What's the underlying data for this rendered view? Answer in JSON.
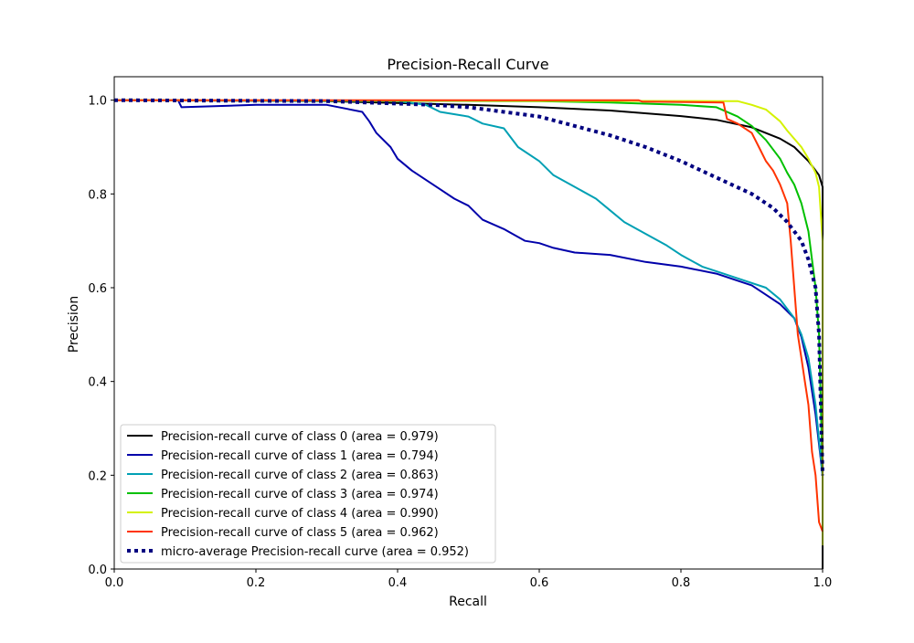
{
  "chart_data": {
    "type": "line",
    "title": "Precision-Recall Curve",
    "xlabel": "Recall",
    "ylabel": "Precision",
    "xlim": [
      0.0,
      1.0
    ],
    "ylim": [
      0.0,
      1.05
    ],
    "x_ticks": [
      "0.0",
      "0.2",
      "0.4",
      "0.6",
      "0.8",
      "1.0"
    ],
    "y_ticks": [
      "0.0",
      "0.2",
      "0.4",
      "0.6",
      "0.8",
      "1.0"
    ],
    "grid": false,
    "legend_position": "lower-left",
    "series": [
      {
        "name": "Precision-recall curve of class 0 (area = 0.979)",
        "color": "#000000",
        "style": "solid",
        "points": [
          [
            0.0,
            1.0
          ],
          [
            0.3,
            0.998
          ],
          [
            0.5,
            0.99
          ],
          [
            0.6,
            0.985
          ],
          [
            0.7,
            0.978
          ],
          [
            0.8,
            0.966
          ],
          [
            0.85,
            0.958
          ],
          [
            0.9,
            0.942
          ],
          [
            0.94,
            0.918
          ],
          [
            0.96,
            0.9
          ],
          [
            0.98,
            0.87
          ],
          [
            0.99,
            0.85
          ],
          [
            0.995,
            0.84
          ],
          [
            1.0,
            0.815
          ],
          [
            1.0,
            0.0
          ]
        ]
      },
      {
        "name": "Precision-recall curve of class 1 (area = 0.794)",
        "color": "#0000aa",
        "style": "solid",
        "points": [
          [
            0.0,
            1.0
          ],
          [
            0.09,
            1.0
          ],
          [
            0.095,
            0.985
          ],
          [
            0.2,
            0.99
          ],
          [
            0.3,
            0.99
          ],
          [
            0.35,
            0.975
          ],
          [
            0.36,
            0.955
          ],
          [
            0.37,
            0.93
          ],
          [
            0.39,
            0.9
          ],
          [
            0.4,
            0.875
          ],
          [
            0.42,
            0.85
          ],
          [
            0.44,
            0.83
          ],
          [
            0.46,
            0.81
          ],
          [
            0.48,
            0.79
          ],
          [
            0.5,
            0.775
          ],
          [
            0.52,
            0.745
          ],
          [
            0.55,
            0.725
          ],
          [
            0.58,
            0.7
          ],
          [
            0.6,
            0.695
          ],
          [
            0.62,
            0.685
          ],
          [
            0.65,
            0.675
          ],
          [
            0.7,
            0.67
          ],
          [
            0.75,
            0.655
          ],
          [
            0.8,
            0.645
          ],
          [
            0.85,
            0.63
          ],
          [
            0.88,
            0.615
          ],
          [
            0.9,
            0.605
          ],
          [
            0.92,
            0.585
          ],
          [
            0.94,
            0.565
          ],
          [
            0.96,
            0.535
          ],
          [
            0.97,
            0.495
          ],
          [
            0.98,
            0.43
          ],
          [
            0.99,
            0.33
          ],
          [
            1.0,
            0.2
          ]
        ]
      },
      {
        "name": "Precision-recall curve of class 2 (area = 0.863)",
        "color": "#00a0b4",
        "style": "solid",
        "points": [
          [
            0.0,
            1.0
          ],
          [
            0.4,
            0.998
          ],
          [
            0.44,
            0.99
          ],
          [
            0.46,
            0.975
          ],
          [
            0.5,
            0.965
          ],
          [
            0.52,
            0.95
          ],
          [
            0.55,
            0.94
          ],
          [
            0.57,
            0.9
          ],
          [
            0.6,
            0.87
          ],
          [
            0.62,
            0.84
          ],
          [
            0.65,
            0.815
          ],
          [
            0.68,
            0.79
          ],
          [
            0.7,
            0.765
          ],
          [
            0.72,
            0.74
          ],
          [
            0.75,
            0.715
          ],
          [
            0.78,
            0.69
          ],
          [
            0.8,
            0.67
          ],
          [
            0.83,
            0.645
          ],
          [
            0.86,
            0.63
          ],
          [
            0.89,
            0.615
          ],
          [
            0.92,
            0.6
          ],
          [
            0.94,
            0.575
          ],
          [
            0.96,
            0.535
          ],
          [
            0.97,
            0.5
          ],
          [
            0.98,
            0.45
          ],
          [
            0.99,
            0.35
          ],
          [
            1.0,
            0.2
          ]
        ]
      },
      {
        "name": "Precision-recall curve of class 3 (area = 0.974)",
        "color": "#00c000",
        "style": "solid",
        "points": [
          [
            0.0,
            1.0
          ],
          [
            0.6,
            0.998
          ],
          [
            0.7,
            0.995
          ],
          [
            0.8,
            0.99
          ],
          [
            0.85,
            0.985
          ],
          [
            0.88,
            0.965
          ],
          [
            0.9,
            0.945
          ],
          [
            0.92,
            0.915
          ],
          [
            0.94,
            0.875
          ],
          [
            0.95,
            0.845
          ],
          [
            0.96,
            0.82
          ],
          [
            0.97,
            0.78
          ],
          [
            0.98,
            0.72
          ],
          [
            0.985,
            0.66
          ],
          [
            0.99,
            0.6
          ],
          [
            0.995,
            0.5
          ],
          [
            1.0,
            0.2
          ]
        ]
      },
      {
        "name": "Precision-recall curve of class 4 (area = 0.990)",
        "color": "#d4f200",
        "style": "solid",
        "points": [
          [
            0.0,
            1.0
          ],
          [
            0.85,
            0.998
          ],
          [
            0.88,
            0.998
          ],
          [
            0.9,
            0.99
          ],
          [
            0.92,
            0.98
          ],
          [
            0.94,
            0.955
          ],
          [
            0.95,
            0.935
          ],
          [
            0.97,
            0.9
          ],
          [
            0.98,
            0.875
          ],
          [
            0.99,
            0.845
          ],
          [
            0.995,
            0.815
          ],
          [
            1.0,
            0.7
          ],
          [
            1.0,
            0.05
          ]
        ]
      },
      {
        "name": "Precision-recall curve of class 5 (area = 0.962)",
        "color": "#ff3300",
        "style": "solid",
        "points": [
          [
            0.0,
            1.0
          ],
          [
            0.74,
            1.0
          ],
          [
            0.745,
            0.997
          ],
          [
            0.86,
            0.995
          ],
          [
            0.865,
            0.96
          ],
          [
            0.88,
            0.95
          ],
          [
            0.9,
            0.93
          ],
          [
            0.91,
            0.9
          ],
          [
            0.92,
            0.87
          ],
          [
            0.93,
            0.85
          ],
          [
            0.94,
            0.82
          ],
          [
            0.945,
            0.8
          ],
          [
            0.95,
            0.78
          ],
          [
            0.955,
            0.7
          ],
          [
            0.96,
            0.6
          ],
          [
            0.965,
            0.5
          ],
          [
            0.97,
            0.45
          ],
          [
            0.975,
            0.4
          ],
          [
            0.98,
            0.35
          ],
          [
            0.985,
            0.25
          ],
          [
            0.99,
            0.2
          ],
          [
            0.995,
            0.1
          ],
          [
            1.0,
            0.08
          ]
        ]
      },
      {
        "name": "micro-average Precision-recall curve (area = 0.952)",
        "color": "#000080",
        "style": "dotted",
        "points": [
          [
            0.0,
            1.0
          ],
          [
            0.3,
            0.998
          ],
          [
            0.45,
            0.99
          ],
          [
            0.5,
            0.985
          ],
          [
            0.55,
            0.975
          ],
          [
            0.6,
            0.965
          ],
          [
            0.65,
            0.945
          ],
          [
            0.7,
            0.925
          ],
          [
            0.75,
            0.9
          ],
          [
            0.8,
            0.87
          ],
          [
            0.85,
            0.835
          ],
          [
            0.9,
            0.8
          ],
          [
            0.93,
            0.77
          ],
          [
            0.95,
            0.74
          ],
          [
            0.97,
            0.7
          ],
          [
            0.98,
            0.66
          ],
          [
            0.99,
            0.6
          ],
          [
            0.995,
            0.5
          ],
          [
            1.0,
            0.2
          ]
        ]
      }
    ]
  }
}
